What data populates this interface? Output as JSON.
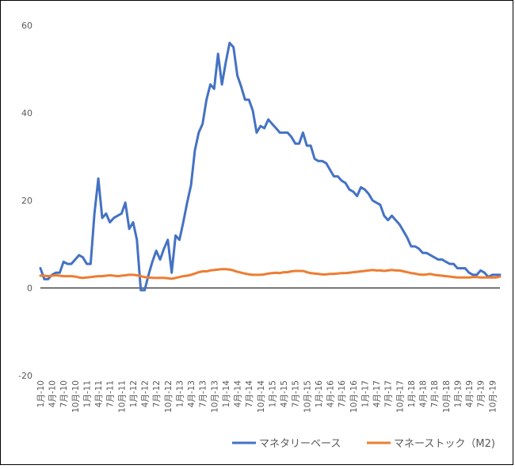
{
  "chart_data": {
    "type": "line",
    "title": "",
    "xlabel": "",
    "ylabel": "",
    "ylim": [
      -20,
      60
    ],
    "yticks": [
      -20,
      0,
      20,
      40,
      60
    ],
    "grid": false,
    "legend_position": "bottom-right",
    "x_tick_labels": [
      "1月-10",
      "4月-10",
      "7月-10",
      "10月-10",
      "1月-11",
      "4月-11",
      "7月-11",
      "10月-11",
      "1月-12",
      "4月-12",
      "7月-12",
      "10月-12",
      "1月-13",
      "4月-13",
      "7月-13",
      "10月-13",
      "1月-14",
      "4月-14",
      "7月-14",
      "10月-14",
      "1月-15",
      "4月-15",
      "7月-15",
      "10月-15",
      "1月-16",
      "4月-16",
      "7月-16",
      "10月-16",
      "1月-17",
      "4月-17",
      "7月-17",
      "10月-17",
      "1月-18",
      "4月-18",
      "7月-18",
      "10月-18",
      "1月-19",
      "4月-19",
      "7月-19",
      "10月-19"
    ],
    "series": [
      {
        "name": "マネタリーベース",
        "color": "#4472C4",
        "values": [
          4.5,
          2,
          2,
          3,
          3.5,
          3.5,
          6,
          5.5,
          5.5,
          6.5,
          7.5,
          7,
          5.5,
          5.5,
          17,
          25,
          16,
          17,
          15,
          16,
          16.5,
          17,
          19.5,
          13.5,
          15,
          11,
          -0.5,
          -0.5,
          3,
          6,
          8.5,
          6.5,
          9,
          11,
          3.5,
          12,
          11,
          15,
          19.5,
          23.5,
          31.5,
          35.5,
          37.5,
          43,
          46.5,
          45.5,
          53.5,
          46.5,
          51.5,
          56,
          55,
          48.5,
          46,
          43,
          43,
          40.5,
          35.5,
          37,
          36.5,
          38.5,
          37.5,
          36.5,
          35.5,
          35.5,
          35.5,
          34.5,
          33,
          33,
          35.5,
          32.5,
          32.5,
          29.5,
          29,
          29,
          28.5,
          27,
          25.5,
          25.5,
          24.5,
          24,
          22.5,
          22,
          21,
          23,
          22.5,
          21.5,
          20,
          19.5,
          19,
          16.5,
          15.5,
          16.5,
          15.5,
          14.5,
          13,
          11.5,
          9.5,
          9.5,
          9,
          8,
          8,
          7.5,
          7,
          6.5,
          6.5,
          6,
          5.5,
          5.5,
          4.5,
          4.5,
          4.5,
          3.5,
          3,
          3,
          4,
          3.5,
          2.5,
          3,
          3,
          3
        ]
      },
      {
        "name": "マネーストック（M2)",
        "color": "#ED7D31",
        "values": [
          2.8,
          2.8,
          2.7,
          2.8,
          2.9,
          2.8,
          2.7,
          2.7,
          2.7,
          2.6,
          2.4,
          2.3,
          2.4,
          2.5,
          2.6,
          2.7,
          2.7,
          2.8,
          2.9,
          2.8,
          2.7,
          2.8,
          2.9,
          3,
          3,
          2.9,
          2.7,
          2.5,
          2.4,
          2.3,
          2.3,
          2.3,
          2.3,
          2.2,
          2.1,
          2.3,
          2.5,
          2.7,
          2.8,
          3,
          3.3,
          3.6,
          3.8,
          3.8,
          4,
          4.1,
          4.2,
          4.3,
          4.3,
          4.2,
          4,
          3.7,
          3.5,
          3.3,
          3.1,
          3,
          3,
          3,
          3.1,
          3.3,
          3.4,
          3.5,
          3.4,
          3.6,
          3.6,
          3.8,
          3.9,
          3.9,
          3.9,
          3.6,
          3.4,
          3.3,
          3.2,
          3.1,
          3.1,
          3.2,
          3.2,
          3.3,
          3.4,
          3.4,
          3.5,
          3.6,
          3.7,
          3.8,
          3.9,
          4,
          4.1,
          4,
          4,
          3.9,
          4,
          4.1,
          4,
          4,
          3.8,
          3.6,
          3.4,
          3.3,
          3.1,
          3,
          3.1,
          3.2,
          3,
          2.9,
          2.8,
          2.7,
          2.6,
          2.5,
          2.4,
          2.4,
          2.4,
          2.4,
          2.5,
          2.5,
          2.4,
          2.4,
          2.4,
          2.4,
          2.4,
          2.6
        ]
      }
    ]
  }
}
